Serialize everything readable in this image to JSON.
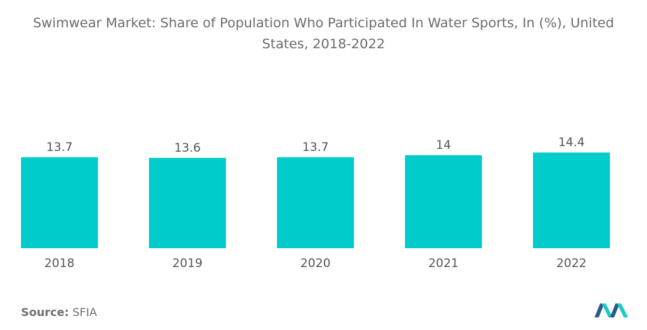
{
  "title_line1": "Swimwear Market: Share of Population Who Participated In Water Sports, In (%), United",
  "title_line2": "States, 2018-2022",
  "source_label": "Source:",
  "source_value": "SFIA",
  "colors": {
    "bar": "#00cccc",
    "text": "#555555",
    "title": "#6b6b6b",
    "logo_dark": "#2a5a8a",
    "logo_teal": "#1ec8c8"
  },
  "chart_data": {
    "type": "bar",
    "categories": [
      "2018",
      "2019",
      "2020",
      "2021",
      "2022"
    ],
    "values": [
      13.7,
      13.6,
      13.7,
      14,
      14.4
    ],
    "value_labels": [
      "13.7",
      "13.6",
      "13.7",
      "14",
      "14.4"
    ],
    "title": "Swimwear Market: Share of Population Who Participated In Water Sports, In (%), United States, 2018-2022",
    "xlabel": "",
    "ylabel": "",
    "grid": false,
    "legend": "none"
  }
}
